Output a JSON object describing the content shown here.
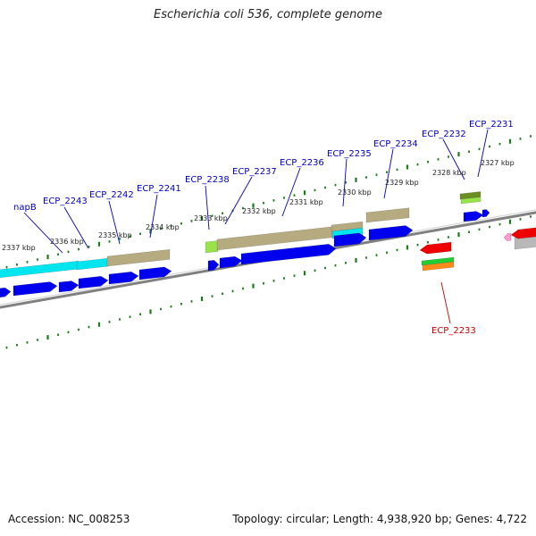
{
  "title": "Escherichia coli 536, complete genome",
  "footer": {
    "accession": "Accession: NC_008253",
    "stats": "Topology: circular; Length: 4,938,920 bp; Genes: 4,722"
  },
  "tick_labels": [
    "2327 kbp",
    "2328 kbp",
    "2329 kbp",
    "2330 kbp",
    "2331 kbp",
    "2332 kbp",
    "2333 kbp",
    "2334 kbp",
    "2335 kbp",
    "2336 kbp",
    "2337 kbp"
  ],
  "gene_labels": [
    "ECP_2231",
    "ECP_2232",
    "ECP_2234",
    "ECP_2235",
    "ECP_2236",
    "ECP_2237",
    "ECP_2238",
    "ECP_2241",
    "ECP_2242",
    "ECP_2243",
    "napB",
    "ECP_2233"
  ],
  "colors": {
    "forward_label": "#0000cc",
    "reverse_label": "#cc0000",
    "cds_forward": "#0000ee",
    "cds_reverse": "#ee0000",
    "cyan_feature": "#00e5ee",
    "olive_feature": "#b5aa80",
    "lightgreen_feature": "#99e34a",
    "orange_feature": "#ff8c1a",
    "green_feature": "#22cc33",
    "backbone": "#808080",
    "tick": "#1a7a1a"
  }
}
